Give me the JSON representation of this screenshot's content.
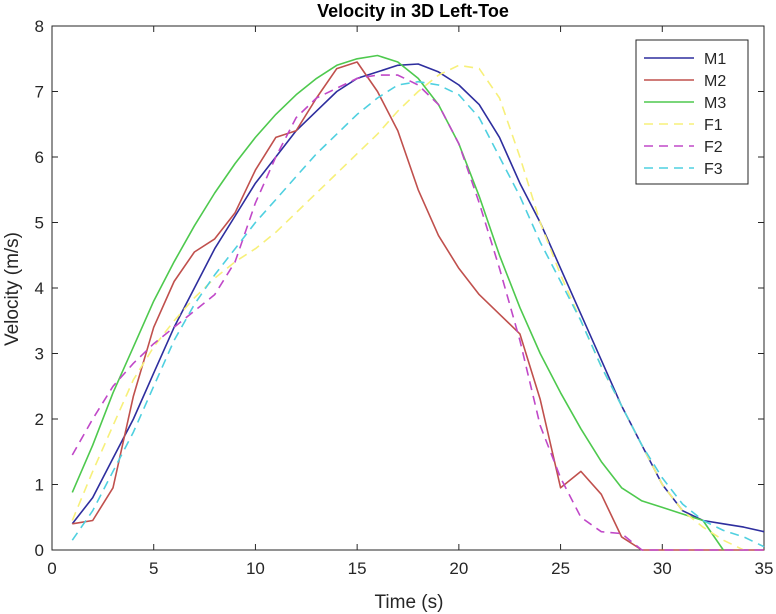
{
  "chart_data": {
    "type": "line",
    "title": "Velocity in 3D Left-Toe",
    "xlabel": "Time (s)",
    "ylabel": "Velocity (m/s)",
    "xlim": [
      0,
      35
    ],
    "ylim": [
      0,
      8
    ],
    "xticks": [
      0,
      5,
      10,
      15,
      20,
      25,
      30,
      35
    ],
    "yticks": [
      0,
      1,
      2,
      3,
      4,
      5,
      6,
      7,
      8
    ],
    "grid": false,
    "legend_position": "top-right",
    "series": [
      {
        "name": "M1",
        "color": "#2e2e9e",
        "dash": "solid",
        "x": [
          1,
          2,
          3,
          4,
          5,
          6,
          7,
          8,
          9,
          10,
          11,
          12,
          13,
          14,
          15,
          16,
          17,
          18,
          19,
          20,
          21,
          22,
          23,
          24,
          25,
          26,
          27,
          28,
          29,
          30,
          31,
          32,
          33,
          34,
          35
        ],
        "y": [
          0.4,
          0.8,
          1.4,
          2.0,
          2.7,
          3.4,
          4.0,
          4.6,
          5.1,
          5.6,
          6.0,
          6.4,
          6.7,
          7.0,
          7.2,
          7.3,
          7.4,
          7.42,
          7.3,
          7.1,
          6.8,
          6.3,
          5.6,
          5.0,
          4.3,
          3.6,
          2.9,
          2.2,
          1.6,
          1.0,
          0.6,
          0.45,
          0.4,
          0.35,
          0.28
        ]
      },
      {
        "name": "M2",
        "color": "#c0504d",
        "dash": "solid",
        "x": [
          1,
          2,
          3,
          4,
          5,
          6,
          7,
          8,
          9,
          10,
          11,
          12,
          13,
          14,
          15,
          16,
          17,
          18,
          19,
          20,
          21,
          22,
          23,
          24,
          25,
          26,
          27,
          28,
          29,
          30,
          31,
          32,
          33,
          34,
          35
        ],
        "y": [
          0.4,
          0.45,
          0.95,
          2.35,
          3.4,
          4.1,
          4.55,
          4.75,
          5.15,
          5.8,
          6.3,
          6.4,
          6.9,
          7.35,
          7.45,
          7.0,
          6.4,
          5.5,
          4.8,
          4.3,
          3.9,
          3.6,
          3.3,
          2.3,
          0.95,
          1.2,
          0.85,
          0.2,
          0.0,
          0.0,
          0.0,
          0.0,
          0.0,
          0.0,
          0.0
        ]
      },
      {
        "name": "M3",
        "color": "#4ec94e",
        "dash": "solid",
        "x": [
          1,
          2,
          3,
          4,
          5,
          6,
          7,
          8,
          9,
          10,
          11,
          12,
          13,
          14,
          15,
          16,
          17,
          18,
          19,
          20,
          21,
          22,
          23,
          24,
          25,
          26,
          27,
          28,
          29,
          30,
          31,
          32,
          33
        ],
        "y": [
          0.88,
          1.6,
          2.4,
          3.1,
          3.8,
          4.4,
          4.95,
          5.45,
          5.9,
          6.3,
          6.65,
          6.95,
          7.2,
          7.4,
          7.5,
          7.55,
          7.45,
          7.2,
          6.8,
          6.2,
          5.4,
          4.5,
          3.7,
          3.0,
          2.4,
          1.85,
          1.35,
          0.95,
          0.75,
          0.65,
          0.55,
          0.45,
          0.0
        ]
      },
      {
        "name": "F1",
        "color": "#f7f07a",
        "dash": "dashed",
        "x": [
          1,
          2,
          3,
          4,
          5,
          6,
          7,
          8,
          9,
          10,
          11,
          12,
          13,
          14,
          15,
          16,
          17,
          18,
          19,
          20,
          21,
          22,
          23,
          24,
          25,
          26,
          27,
          28,
          29,
          30,
          31,
          32,
          33,
          34
        ],
        "y": [
          0.45,
          1.2,
          1.9,
          2.6,
          3.1,
          3.5,
          3.85,
          4.15,
          4.4,
          4.6,
          4.85,
          5.15,
          5.45,
          5.75,
          6.05,
          6.35,
          6.7,
          7.0,
          7.25,
          7.4,
          7.35,
          6.9,
          6.0,
          5.0,
          4.2,
          3.5,
          2.8,
          2.2,
          1.6,
          1.0,
          0.6,
          0.35,
          0.15,
          0.0
        ]
      },
      {
        "name": "F2",
        "color": "#c048c8",
        "dash": "dashed",
        "x": [
          1,
          2,
          3,
          4,
          5,
          6,
          7,
          8,
          9,
          10,
          11,
          12,
          13,
          14,
          15,
          16,
          17,
          18,
          19,
          20,
          21,
          22,
          23,
          24,
          25,
          26,
          27,
          28,
          29,
          30,
          31,
          32,
          33,
          34,
          35
        ],
        "y": [
          1.45,
          2.0,
          2.5,
          2.85,
          3.15,
          3.4,
          3.65,
          3.9,
          4.4,
          5.3,
          6.0,
          6.6,
          6.9,
          7.05,
          7.2,
          7.25,
          7.25,
          7.1,
          6.8,
          6.2,
          5.3,
          4.3,
          3.2,
          1.9,
          1.1,
          0.5,
          0.28,
          0.25,
          0.0,
          0.0,
          0.0,
          0.0,
          0.0,
          0.0,
          0.0
        ]
      },
      {
        "name": "F3",
        "color": "#4fd0e0",
        "dash": "dashed",
        "x": [
          1,
          2,
          3,
          4,
          5,
          6,
          7,
          8,
          9,
          10,
          11,
          12,
          13,
          14,
          15,
          16,
          17,
          18,
          19,
          20,
          21,
          22,
          23,
          24,
          25,
          26,
          27,
          28,
          29,
          30,
          31,
          32,
          33,
          34,
          35
        ],
        "y": [
          0.15,
          0.6,
          1.2,
          1.8,
          2.5,
          3.2,
          3.75,
          4.2,
          4.6,
          5.0,
          5.35,
          5.7,
          6.05,
          6.35,
          6.65,
          6.9,
          7.1,
          7.15,
          7.1,
          6.95,
          6.6,
          6.0,
          5.4,
          4.7,
          4.1,
          3.5,
          2.8,
          2.2,
          1.6,
          1.1,
          0.7,
          0.45,
          0.3,
          0.2,
          0.05
        ]
      }
    ]
  }
}
